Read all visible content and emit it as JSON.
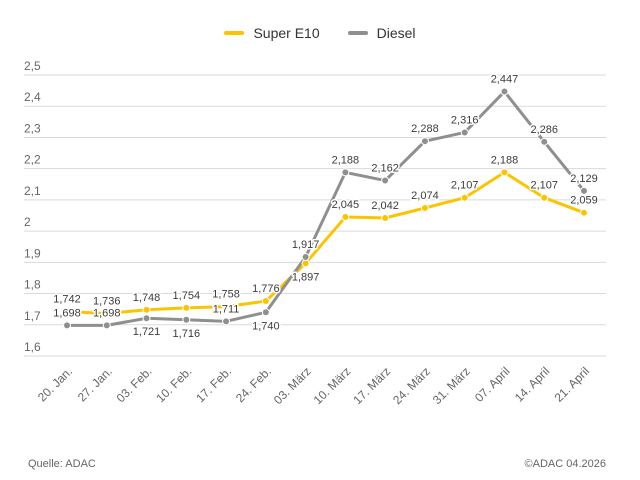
{
  "legend": {
    "items": [
      {
        "label": "Super E10",
        "color": "#FCC400"
      },
      {
        "label": "Diesel",
        "color": "#8F8F8F"
      }
    ]
  },
  "footer": {
    "source": "Quelle: ADAC",
    "copyright": "©ADAC 04.2026"
  },
  "chart_data": {
    "type": "line",
    "title": "",
    "xlabel": "",
    "ylabel": "",
    "grid": true,
    "legend_position": "top",
    "ylim": [
      1.6,
      2.5
    ],
    "grid_color": "#DADADA",
    "tick_color": "#666666",
    "data_label_color": "#3C3C3C",
    "categories": [
      "20. Jan.",
      "27. Jan.",
      "03. Feb.",
      "10. Feb.",
      "17. Feb.",
      "24. Feb.",
      "03. März",
      "10. März",
      "17. März",
      "24. März",
      "31. März",
      "07. April",
      "14. April",
      "21. April"
    ],
    "y_ticks": [
      {
        "value": 2.5,
        "label": "2,5"
      },
      {
        "value": 2.4,
        "label": "2,4"
      },
      {
        "value": 2.3,
        "label": "2,3"
      },
      {
        "value": 2.2,
        "label": "2,2"
      },
      {
        "value": 2.1,
        "label": "2,1"
      },
      {
        "value": 2.0,
        "label": "2"
      },
      {
        "value": 1.9,
        "label": "1,9"
      },
      {
        "value": 1.8,
        "label": "1,8"
      },
      {
        "value": 1.7,
        "label": "1,7"
      },
      {
        "value": 1.6,
        "label": "1,6"
      }
    ],
    "series": [
      {
        "name": "Super E10",
        "color": "#FCC400",
        "values": [
          1.742,
          1.736,
          1.748,
          1.754,
          1.758,
          1.776,
          1.897,
          2.045,
          2.042,
          2.074,
          2.107,
          2.188,
          2.107,
          2.059
        ],
        "point_labels": [
          "1,742",
          "1,736",
          "1,748",
          "1,754",
          "1,758",
          "1,776",
          "1,897",
          "2,045",
          "2,042",
          "2,074",
          "2,107",
          "2,188",
          "2,107",
          "2,059"
        ],
        "label_side": [
          "above",
          "above",
          "above",
          "above",
          "above",
          "above",
          "below",
          "above",
          "above",
          "above",
          "above",
          "above",
          "above",
          "above"
        ]
      },
      {
        "name": "Diesel",
        "color": "#8F8F8F",
        "values": [
          1.698,
          1.698,
          1.721,
          1.716,
          1.711,
          1.74,
          1.917,
          2.188,
          2.162,
          2.288,
          2.316,
          2.447,
          2.286,
          2.129
        ],
        "point_labels": [
          "1,698",
          "1,698",
          "1,721",
          "1,716",
          "1,711",
          "1,740",
          "1,917",
          "2,188",
          "2,162",
          "2,288",
          "2,316",
          "2,447",
          "2,286",
          "2,129"
        ],
        "label_side": [
          "above",
          "above",
          "below",
          "below",
          "above",
          "below",
          "above",
          "above",
          "above",
          "above",
          "above",
          "above",
          "above",
          "above"
        ]
      }
    ]
  }
}
